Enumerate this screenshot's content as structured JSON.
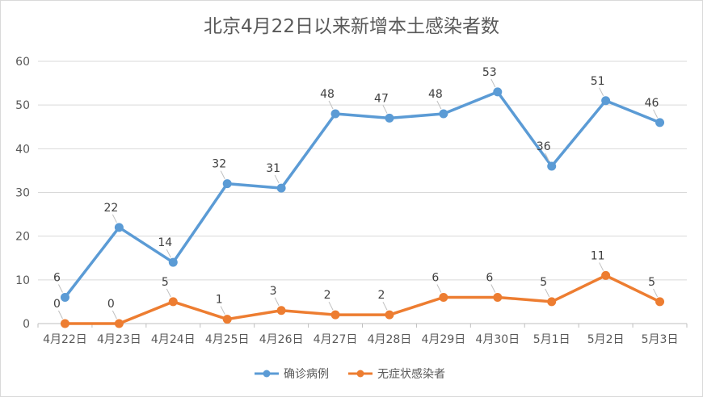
{
  "chart_data": {
    "type": "line",
    "title": "北京4月22日以来新增本土感染者数",
    "categories": [
      "4月22日",
      "4月23日",
      "4月24日",
      "4月25日",
      "4月26日",
      "4月27日",
      "4月28日",
      "4月29日",
      "4月30日",
      "5月1日",
      "5月2日",
      "5月3日"
    ],
    "series": [
      {
        "name": "确诊病例",
        "color": "#5b9bd5",
        "values": [
          6,
          22,
          14,
          32,
          31,
          48,
          47,
          48,
          53,
          36,
          51,
          46
        ]
      },
      {
        "name": "无症状感染者",
        "color": "#ed7d31",
        "values": [
          0,
          0,
          5,
          1,
          3,
          2,
          2,
          6,
          6,
          5,
          11,
          5
        ]
      }
    ],
    "ylim": [
      0,
      60
    ],
    "yticks": [
      0,
      10,
      20,
      30,
      40,
      50,
      60
    ],
    "grid": true,
    "legend": "bottom"
  }
}
